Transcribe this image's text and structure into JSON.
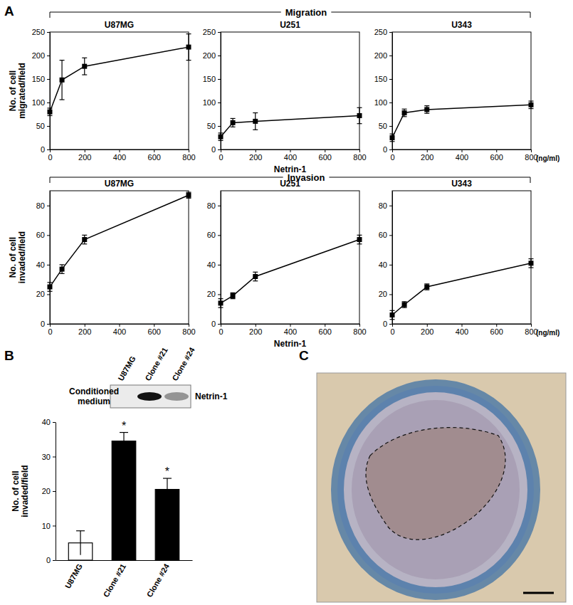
{
  "figure": {
    "panel_labels": [
      "A",
      "B",
      "C"
    ],
    "group_titles": [
      "Migration",
      "Invasion"
    ]
  },
  "blot": {
    "lanes": [
      "U87MG",
      "Clone #21",
      "Clone #24"
    ],
    "row_label": [
      "Conditioned",
      "medium"
    ],
    "band_label": "Netrin-1",
    "band_intensity": [
      0,
      1,
      0.4
    ]
  },
  "chart_data": [
    {
      "type": "line",
      "title": "U87MG",
      "y_label": [
        "No. of cell",
        "migrated/field"
      ],
      "x": [
        0,
        70,
        200,
        800
      ],
      "values": [
        80,
        148,
        177,
        218
      ],
      "errors": [
        8,
        42,
        18,
        28
      ],
      "xlim": [
        0,
        800
      ],
      "xticks": [
        0,
        200,
        400,
        600,
        800
      ],
      "ylim": [
        0,
        250
      ],
      "yticks": [
        0,
        50,
        100,
        150,
        200,
        250
      ],
      "color": "#000000",
      "marker": "square"
    },
    {
      "type": "line",
      "title": "U251",
      "x_label": "Netrin-1",
      "x": [
        0,
        70,
        200,
        800
      ],
      "values": [
        27,
        57,
        60,
        72
      ],
      "errors": [
        8,
        9,
        18,
        17
      ],
      "xlim": [
        0,
        800
      ],
      "xticks": [
        0,
        200,
        400,
        600,
        800
      ],
      "ylim": [
        0,
        250
      ],
      "yticks": [
        0,
        50,
        100,
        150,
        200,
        250
      ],
      "color": "#000000",
      "marker": "square"
    },
    {
      "type": "line",
      "title": "U343",
      "annotation": "(ng/ml)",
      "x": [
        0,
        70,
        200,
        800
      ],
      "values": [
        25,
        78,
        85,
        95
      ],
      "errors": [
        8,
        8,
        8,
        8
      ],
      "xlim": [
        0,
        800
      ],
      "xticks": [
        0,
        200,
        400,
        600,
        800
      ],
      "ylim": [
        0,
        250
      ],
      "yticks": [
        0,
        50,
        100,
        150,
        200,
        250
      ],
      "color": "#000000",
      "marker": "square"
    },
    {
      "type": "line",
      "title": "U87MG",
      "y_label": [
        "No. of cell",
        "invaded/field"
      ],
      "x": [
        0,
        70,
        200,
        800
      ],
      "values": [
        25,
        37,
        57,
        87
      ],
      "errors": [
        3,
        3,
        3,
        2
      ],
      "xlim": [
        0,
        800
      ],
      "xticks": [
        0,
        200,
        400,
        600,
        800
      ],
      "ylim": [
        0,
        90
      ],
      "yticks": [
        0,
        20,
        40,
        60,
        80
      ],
      "color": "#000000",
      "marker": "square"
    },
    {
      "type": "line",
      "title": "U251",
      "x_label": "Netrin-1",
      "x": [
        0,
        70,
        200,
        800
      ],
      "values": [
        14,
        19,
        32,
        57
      ],
      "errors": [
        3,
        2,
        3,
        3
      ],
      "xlim": [
        0,
        800
      ],
      "xticks": [
        0,
        200,
        400,
        600,
        800
      ],
      "ylim": [
        0,
        90
      ],
      "yticks": [
        0,
        20,
        40,
        60,
        80
      ],
      "color": "#000000",
      "marker": "square"
    },
    {
      "type": "line",
      "title": "U343",
      "annotation": "(ng/ml)",
      "x": [
        0,
        70,
        200,
        800
      ],
      "values": [
        6,
        13,
        25,
        41
      ],
      "errors": [
        3,
        2,
        2,
        3
      ],
      "xlim": [
        0,
        800
      ],
      "xticks": [
        0,
        200,
        400,
        600,
        800
      ],
      "ylim": [
        0,
        90
      ],
      "yticks": [
        0,
        20,
        40,
        60,
        80
      ],
      "color": "#000000",
      "marker": "square"
    },
    {
      "type": "bar",
      "y_label": [
        "No. of cell",
        "invaded/field"
      ],
      "categories": [
        "U87MG",
        "Clone #21",
        "Clone #24"
      ],
      "values": [
        5,
        34.5,
        20.5
      ],
      "errors": [
        3.5,
        2.5,
        3.2
      ],
      "colors": [
        "#ffffff",
        "#000000",
        "#000000"
      ],
      "ylim": [
        0,
        40
      ],
      "yticks": [
        0,
        10,
        20,
        30,
        40
      ],
      "annotations": [
        {
          "category": "Clone #21",
          "text": "*"
        },
        {
          "category": "Clone #24",
          "text": "*"
        }
      ]
    }
  ]
}
